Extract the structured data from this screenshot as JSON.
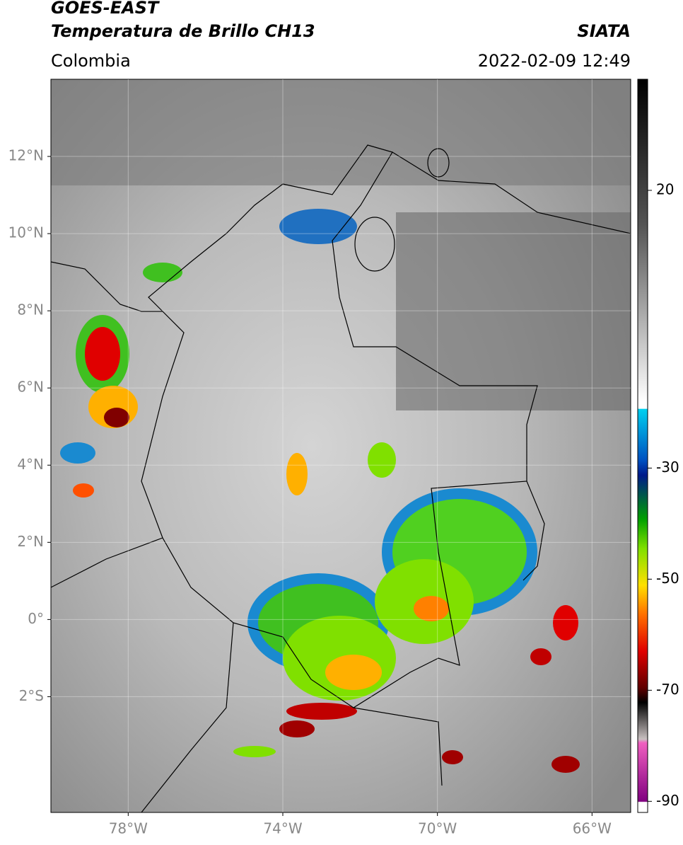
{
  "header": {
    "title": "GOES-EAST",
    "subtitle": "Temperatura de Brillo CH13",
    "region": "Colombia",
    "source": "SIATA",
    "datetime": "2022-02-09 12:49"
  },
  "map": {
    "xlim": [
      -80,
      -65
    ],
    "ylim": [
      -5,
      14
    ],
    "lat_ticks": [
      {
        "value": 12,
        "label": "12°N"
      },
      {
        "value": 10,
        "label": "10°N"
      },
      {
        "value": 8,
        "label": "8°N"
      },
      {
        "value": 6,
        "label": "6°N"
      },
      {
        "value": 4,
        "label": "4°N"
      },
      {
        "value": 2,
        "label": "2°N"
      },
      {
        "value": 0,
        "label": "0°"
      },
      {
        "value": -2,
        "label": "2°S"
      }
    ],
    "lon_ticks": [
      {
        "value": -78,
        "label": "78°W"
      },
      {
        "value": -74,
        "label": "74°W"
      },
      {
        "value": -70,
        "label": "70°W"
      },
      {
        "value": -66,
        "label": "66°W"
      }
    ]
  },
  "colorbar": {
    "lim": [
      -92,
      40
    ],
    "ticks": [
      20,
      -30,
      -50,
      -70,
      -90
    ]
  }
}
